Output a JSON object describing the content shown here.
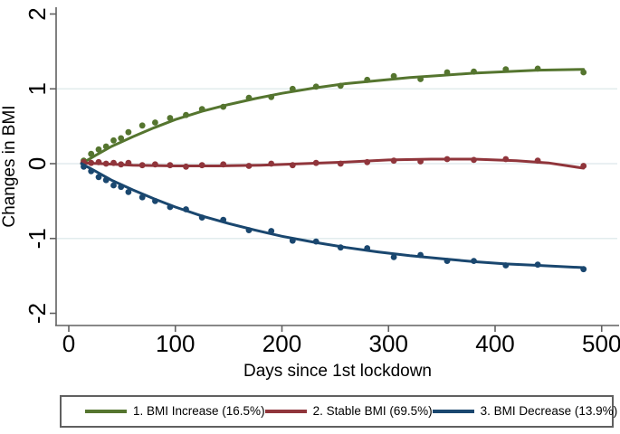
{
  "figure_title": "",
  "style": {
    "background": "#ffffff",
    "axis_color": "#606060",
    "grid_color": "#e2eced",
    "text_color": "#000000",
    "green": "#55752F",
    "maroon": "#90353B",
    "navy": "#1A476F"
  },
  "legend": {
    "items": [
      {
        "label": "1. BMI Increase (16.5%)",
        "color": "#55752F"
      },
      {
        "label": "2. Stable BMI (69.5%)",
        "color": "#90353B"
      },
      {
        "label": "3. BMI Decrease (13.9%)",
        "color": "#1A476F"
      }
    ]
  },
  "chart_data": {
    "type": "line",
    "title": "",
    "xlabel": "Days since 1st lockdown",
    "ylabel": "Changes in BMI",
    "xlim": [
      -12,
      517
    ],
    "ylim": [
      -2.17,
      2.17
    ],
    "xticks": [
      0,
      100,
      200,
      300,
      400,
      500
    ],
    "yticks": [
      2,
      1,
      0,
      -1,
      -2
    ],
    "ytick_labels": [
      "2",
      "1",
      "0",
      "-1",
      "-2"
    ],
    "grid_y": [
      1,
      0,
      -1
    ],
    "grid": "horizontal-only",
    "legend_position": "bottom",
    "series": [
      {
        "name": "1. BMI Increase (16.5%)",
        "color": "#55752F",
        "line": {
          "x": [
            12,
            25,
            40,
            60,
            80,
            100,
            125,
            150,
            175,
            200,
            230,
            260,
            290,
            320,
            350,
            380,
            410,
            440,
            483
          ],
          "y": [
            0,
            0.11,
            0.23,
            0.36,
            0.48,
            0.59,
            0.7,
            0.79,
            0.87,
            0.94,
            1.01,
            1.07,
            1.11,
            1.15,
            1.18,
            1.21,
            1.23,
            1.25,
            1.26
          ]
        },
        "points": {
          "x": [
            14,
            21,
            28,
            35,
            42,
            49,
            56,
            69,
            81,
            95,
            110,
            125,
            145,
            169,
            190,
            210,
            232,
            255,
            280,
            305,
            330,
            355,
            380,
            410,
            440,
            483
          ],
          "y": [
            0.04,
            0.13,
            0.19,
            0.23,
            0.31,
            0.34,
            0.42,
            0.51,
            0.55,
            0.61,
            0.65,
            0.73,
            0.76,
            0.88,
            0.89,
            1.0,
            1.03,
            1.04,
            1.12,
            1.17,
            1.13,
            1.22,
            1.23,
            1.26,
            1.27,
            1.22
          ]
        }
      },
      {
        "name": "2. Stable BMI (69.5%)",
        "color": "#90353B",
        "line": {
          "x": [
            12,
            30,
            60,
            100,
            140,
            180,
            220,
            260,
            300,
            340,
            380,
            420,
            450,
            483
          ],
          "y": [
            0.01,
            0,
            -0.02,
            -0.03,
            -0.03,
            -0.02,
            0,
            0.02,
            0.05,
            0.06,
            0.06,
            0.04,
            0.01,
            -0.06
          ]
        },
        "points": {
          "x": [
            14,
            21,
            28,
            35,
            42,
            49,
            56,
            69,
            81,
            95,
            110,
            125,
            145,
            169,
            190,
            210,
            232,
            255,
            280,
            305,
            330,
            355,
            380,
            410,
            440,
            483
          ],
          "y": [
            0.02,
            0.01,
            0.02,
            0,
            0.01,
            -0.01,
            0.01,
            -0.02,
            -0.01,
            -0.02,
            -0.04,
            -0.02,
            -0.01,
            -0.03,
            0,
            -0.02,
            0.01,
            0,
            0.02,
            0.04,
            0.03,
            0.06,
            0.05,
            0.06,
            0.04,
            -0.03
          ]
        }
      },
      {
        "name": "3. BMI Decrease (13.9%)",
        "color": "#1A476F",
        "line": {
          "x": [
            12,
            25,
            40,
            60,
            80,
            100,
            125,
            150,
            175,
            200,
            230,
            260,
            290,
            320,
            350,
            380,
            410,
            440,
            483
          ],
          "y": [
            0,
            -0.1,
            -0.22,
            -0.35,
            -0.47,
            -0.58,
            -0.7,
            -0.8,
            -0.89,
            -0.97,
            -1.05,
            -1.12,
            -1.18,
            -1.23,
            -1.27,
            -1.31,
            -1.34,
            -1.36,
            -1.39
          ]
        },
        "points": {
          "x": [
            14,
            21,
            28,
            35,
            42,
            49,
            56,
            69,
            81,
            95,
            110,
            125,
            145,
            169,
            190,
            210,
            232,
            255,
            280,
            305,
            330,
            355,
            380,
            410,
            440,
            483
          ],
          "y": [
            -0.04,
            -0.1,
            -0.18,
            -0.22,
            -0.29,
            -0.31,
            -0.38,
            -0.45,
            -0.5,
            -0.58,
            -0.61,
            -0.72,
            -0.75,
            -0.89,
            -0.9,
            -1.03,
            -1.04,
            -1.12,
            -1.13,
            -1.25,
            -1.22,
            -1.3,
            -1.3,
            -1.36,
            -1.35,
            -1.41
          ]
        }
      }
    ]
  }
}
